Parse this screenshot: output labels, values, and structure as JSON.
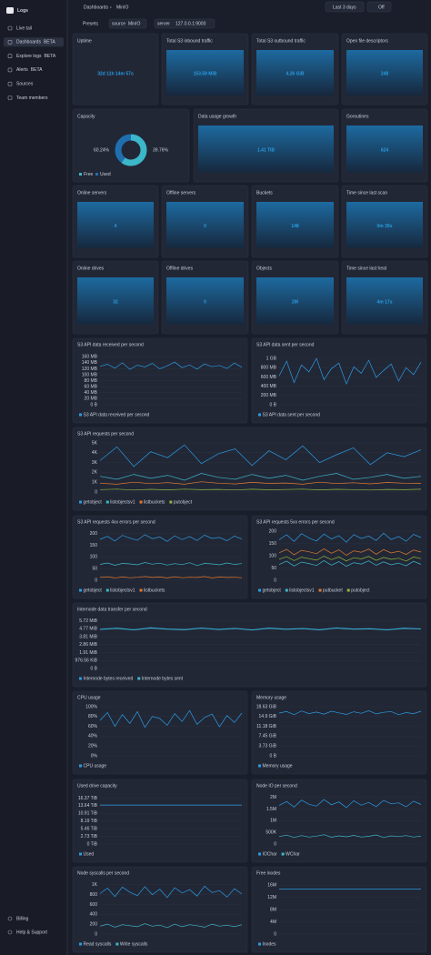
{
  "sidebar": {
    "brand": "Logs",
    "nav": [
      {
        "label": "Live tail"
      },
      {
        "label": "Dashboards",
        "badge": "BETA"
      },
      {
        "label": "Explore logs",
        "badge": "BETA"
      },
      {
        "label": "Alerts",
        "badge": "BETA"
      },
      {
        "label": "Sources"
      },
      {
        "label": "Team members"
      }
    ],
    "footer": [
      "Billing",
      "Help & Support"
    ]
  },
  "topbar": {
    "breadcrumb": [
      "Dashboards",
      "MinIO"
    ],
    "time_range": "Last 3 days",
    "refresh": "Off",
    "presets": "Presets",
    "filters": [
      {
        "key": "source",
        "value": "MinIO"
      },
      {
        "key": "server",
        "value": "127.0.0.1:9000"
      }
    ]
  },
  "stats": [
    {
      "title": "Uptime",
      "value": "32d 11h 14m 57s"
    },
    {
      "title": "Total S3 inbound traffic",
      "value": "153.58 MiB"
    },
    {
      "title": "Total S3 outbound traffic",
      "value": "4.26 GiB"
    },
    {
      "title": "Open file descriptors",
      "value": "248"
    },
    {
      "title": "Data usage growth",
      "value": "1.41 TiB"
    },
    {
      "title": "Goroutines",
      "value": "624"
    },
    {
      "title": "Online servers",
      "value": "4"
    },
    {
      "title": "Offline servers",
      "value": "0"
    },
    {
      "title": "Buckets",
      "value": "148"
    },
    {
      "title": "Time since last scan",
      "value": "0m 39s"
    },
    {
      "title": "Online drives",
      "value": "32"
    },
    {
      "title": "Offline drives",
      "value": "0"
    },
    {
      "title": "Objects",
      "value": "2M"
    },
    {
      "title": "Time since last heal",
      "value": "4m 17s"
    }
  ],
  "capacity": {
    "type": "pie",
    "title": "Capacity",
    "categories": [
      "Free",
      "Used"
    ],
    "values": [
      60.24,
      39.76
    ],
    "value_labels": [
      "60.24%",
      "39.76%"
    ],
    "colors": [
      "#3cb6c9",
      "#1f6fb0"
    ]
  },
  "charts": [
    {
      "type": "line",
      "title": "S3 API data received per second",
      "ylim": [
        0,
        170
      ],
      "yticks": [
        {
          "value": 0,
          "label": "0 B"
        },
        {
          "value": 20,
          "label": "20 MB"
        },
        {
          "value": 40,
          "label": "40 MB"
        },
        {
          "value": 60,
          "label": "60 MB"
        },
        {
          "value": 80,
          "label": "80 MB"
        },
        {
          "value": 100,
          "label": "100 MB"
        },
        {
          "value": 120,
          "label": "120 MB"
        },
        {
          "value": 140,
          "label": "140 MB"
        },
        {
          "value": 160,
          "label": "160 MB"
        }
      ],
      "series": [
        {
          "name": "S3 API data received per second",
          "color": "#2a9be0",
          "values": [
            128,
            135,
            122,
            140,
            118,
            132,
            126,
            138,
            120,
            130,
            142,
            124,
            133,
            119,
            136,
            127,
            131,
            121,
            139,
            125
          ]
        }
      ]
    },
    {
      "type": "line",
      "title": "S3 API data sent per second",
      "ylim": [
        0,
        1100
      ],
      "yticks": [
        {
          "value": 0,
          "label": "0 B"
        },
        {
          "value": 200,
          "label": "200 MB"
        },
        {
          "value": 400,
          "label": "400 MB"
        },
        {
          "value": 600,
          "label": "600 MB"
        },
        {
          "value": 800,
          "label": "800 MB"
        },
        {
          "value": 1000,
          "label": "1 GB"
        }
      ],
      "series": [
        {
          "name": "S3 API data sent per second",
          "color": "#2a9be0",
          "values": [
            620,
            940,
            480,
            860,
            710,
            1000,
            540,
            780,
            900,
            450,
            820,
            680,
            960,
            590,
            740,
            880,
            510,
            800,
            650,
            920
          ]
        }
      ]
    },
    {
      "type": "line",
      "title": "S3 API requests per second",
      "ylim": [
        0,
        5
      ],
      "yticks": [
        0,
        {
          "value": 1,
          "label": "1K"
        },
        {
          "value": 2,
          "label": "2K"
        },
        {
          "value": 3,
          "label": "3K"
        },
        {
          "value": 4,
          "label": "4K"
        },
        {
          "value": 5,
          "label": "5K"
        }
      ],
      "series": [
        {
          "name": "getobject",
          "color": "#2a9be0",
          "values": [
            3.2,
            4.6,
            2.6,
            4.1,
            3.5,
            4.8,
            2.9,
            3.9,
            4.4,
            2.7,
            4.2,
            3.3,
            4.7,
            3.0,
            3.8,
            4.5,
            2.8,
            4.0,
            3.6,
            4.3
          ]
        },
        {
          "name": "listobjectsv1",
          "color": "#3cb6c9",
          "values": [
            1.6,
            1.3,
            1.8,
            1.4,
            1.7,
            1.2,
            1.9,
            1.5,
            1.3,
            1.8,
            1.4,
            1.7,
            1.2,
            1.6,
            1.9,
            1.3,
            1.5,
            1.8,
            1.4,
            1.6
          ]
        },
        {
          "name": "listbuckets",
          "color": "#e07a2e",
          "values": [
            0.9,
            0.8,
            1.0,
            0.85,
            0.95,
            0.8,
            1.05,
            0.9,
            0.82,
            0.98,
            0.88,
            0.92,
            0.8,
            1.0,
            0.86,
            0.94,
            0.83,
            0.97,
            0.9,
            0.87
          ]
        },
        {
          "name": "putobject",
          "color": "#8fb73e",
          "values": [
            0.25,
            0.3,
            0.2,
            0.28,
            0.22,
            0.3,
            0.24,
            0.27,
            0.21,
            0.29,
            0.23,
            0.26,
            0.3,
            0.22,
            0.28,
            0.25,
            0.2,
            0.27,
            0.24,
            0.29
          ]
        }
      ]
    },
    {
      "type": "line",
      "title": "S3 API requests 4xx errors per second",
      "ylim": [
        0,
        210
      ],
      "yticks": [
        0,
        50,
        100,
        150,
        200
      ],
      "series": [
        {
          "name": "getobject",
          "color": "#2a9be0",
          "values": [
            175,
            188,
            168,
            192,
            180,
            171,
            195,
            178,
            185,
            166,
            190,
            174,
            187,
            170,
            193,
            179,
            183,
            169,
            189,
            176
          ]
        },
        {
          "name": "listobjectsv1",
          "color": "#3cb6c9",
          "values": [
            68,
            74,
            64,
            72,
            70,
            66,
            76,
            69,
            73,
            65,
            71,
            67,
            75,
            63,
            72,
            70,
            66,
            74,
            68,
            71
          ]
        },
        {
          "name": "listbuckets",
          "color": "#e07a2e",
          "values": [
            12,
            15,
            10,
            14,
            11,
            13,
            16,
            12,
            14,
            10,
            15,
            11,
            13,
            12,
            16,
            10,
            14,
            12,
            13,
            11
          ]
        }
      ]
    },
    {
      "type": "line",
      "title": "S3 API requests 5xx errors per second",
      "ylim": [
        0,
        200
      ],
      "yticks": [
        0,
        50,
        100,
        150,
        200
      ],
      "series": [
        {
          "name": "getobject",
          "color": "#2a9be0",
          "values": [
            165,
            185,
            158,
            190,
            172,
            160,
            188,
            168,
            182,
            155,
            186,
            170,
            180,
            162,
            192,
            166,
            178,
            159,
            187,
            174
          ]
        },
        {
          "name": "listobjectsv1",
          "color": "#3cb6c9",
          "values": [
            64,
            78,
            58,
            74,
            68,
            60,
            80,
            62,
            76,
            57,
            72,
            66,
            79,
            61,
            75,
            63,
            70,
            59,
            77,
            65
          ]
        },
        {
          "name": "putbucket",
          "color": "#e07a2e",
          "values": [
            112,
            126,
            104,
            122,
            116,
            108,
            128,
            110,
            124,
            102,
            120,
            114,
            127,
            106,
            125,
            111,
            118,
            105,
            123,
            115
          ]
        },
        {
          "name": "putobject",
          "color": "#8fb73e",
          "values": [
            86,
            96,
            80,
            94,
            88,
            82,
            98,
            84,
            95,
            79,
            92,
            87,
            97,
            81,
            93,
            85,
            90,
            78,
            95,
            88
          ]
        }
      ]
    },
    {
      "type": "line",
      "title": "Internode data transfer per second",
      "ylim": [
        0,
        6
      ],
      "yticks": [
        {
          "value": 0,
          "label": "0 B"
        },
        {
          "value": 0.9537,
          "label": "976.56 KiB"
        },
        {
          "value": 1.91,
          "label": "1.91 MiB"
        },
        {
          "value": 2.86,
          "label": "2.86 MiB"
        },
        {
          "value": 3.81,
          "label": "3.81 MiB"
        },
        {
          "value": 4.77,
          "label": "4.77 MiB"
        },
        {
          "value": 5.72,
          "label": "5.72 MiB"
        }
      ],
      "series": [
        {
          "name": "Internode bytes received",
          "color": "#2a9be0",
          "values": [
            4.72,
            4.85,
            4.66,
            4.9,
            4.75,
            4.68,
            4.88,
            4.7,
            4.83,
            4.64,
            4.87,
            4.73,
            4.81,
            4.67,
            4.89,
            4.74,
            4.79,
            4.65,
            4.86,
            4.76
          ]
        },
        {
          "name": "Internode bytes sent",
          "color": "#3cb6c9",
          "values": [
            4.68,
            4.8,
            4.62,
            4.84,
            4.7,
            4.64,
            4.82,
            4.66,
            4.78,
            4.6,
            4.81,
            4.69,
            4.77,
            4.63,
            4.83,
            4.7,
            4.75,
            4.61,
            4.8,
            4.72
          ]
        }
      ]
    },
    {
      "type": "line",
      "title": "CPU usage",
      "ylim": [
        0,
        100
      ],
      "yticks": [
        {
          "value": 0,
          "label": "0%"
        },
        {
          "value": 20,
          "label": "20%"
        },
        {
          "value": 40,
          "label": "40%"
        },
        {
          "value": 60,
          "label": "60%"
        },
        {
          "value": 80,
          "label": "80%"
        },
        {
          "value": 100,
          "label": "100%"
        }
      ],
      "series": [
        {
          "name": "CPU usage",
          "color": "#2a9be0",
          "values": [
            72,
            88,
            60,
            84,
            66,
            90,
            58,
            80,
            76,
            62,
            86,
            70,
            92,
            64,
            78,
            85,
            59,
            82,
            68,
            87
          ]
        }
      ]
    },
    {
      "type": "line",
      "title": "Memory usage",
      "ylim": [
        0,
        18.63
      ],
      "yticks": [
        {
          "value": 0,
          "label": "0 B"
        },
        {
          "value": 3.73,
          "label": "3.73 GiB"
        },
        {
          "value": 7.45,
          "label": "7.45 GiB"
        },
        {
          "value": 11.18,
          "label": "11.18 GiB"
        },
        {
          "value": 14.9,
          "label": "14.9 GiB"
        },
        {
          "value": 18.63,
          "label": "18.63 GiB"
        }
      ],
      "series": [
        {
          "name": "Memory usage",
          "color": "#2a9be0",
          "values": [
            16.2,
            16.8,
            15.6,
            17.0,
            16.0,
            16.6,
            15.8,
            16.9,
            16.3,
            15.7,
            16.7,
            16.1,
            17.1,
            15.9,
            16.5,
            16.8,
            15.6,
            16.4,
            16.0,
            16.9
          ]
        }
      ]
    },
    {
      "type": "line",
      "title": "Used drive capacity",
      "ylim": [
        0,
        17.5
      ],
      "yticks": [
        {
          "value": 0,
          "label": "0 TiB"
        },
        {
          "value": 2.73,
          "label": "2.73 TiB"
        },
        {
          "value": 5.46,
          "label": "5.46 TiB"
        },
        {
          "value": 8.19,
          "label": "8.19 TiB"
        },
        {
          "value": 10.91,
          "label": "10.91 TiB"
        },
        {
          "value": 13.64,
          "label": "13.64 TiB"
        },
        {
          "value": 16.37,
          "label": "16.37 TiB"
        }
      ],
      "series": [
        {
          "name": "Used",
          "color": "#2a9be0",
          "values": [
            13.9,
            13.9,
            13.9,
            13.9,
            13.9,
            13.9,
            13.9,
            13.9,
            13.9,
            13.9,
            13.9,
            13.9,
            13.9,
            13.9,
            13.9,
            13.9,
            13.9,
            13.9,
            13.9,
            13.9
          ]
        }
      ]
    },
    {
      "type": "line",
      "title": "Node IO per second",
      "ylim": [
        0,
        2.1
      ],
      "yticks": [
        0,
        {
          "value": 0.5,
          "label": "500K"
        },
        {
          "value": 1,
          "label": "1M"
        },
        {
          "value": 1.5,
          "label": "1.5M"
        },
        {
          "value": 2,
          "label": "2M"
        }
      ],
      "series": [
        {
          "name": "IOChar",
          "color": "#2a9be0",
          "values": [
            1.65,
            1.82,
            1.58,
            1.88,
            1.7,
            1.62,
            1.9,
            1.68,
            1.8,
            1.56,
            1.85,
            1.66,
            1.78,
            1.6,
            1.87,
            1.72,
            1.76,
            1.59,
            1.83,
            1.69
          ]
        },
        {
          "name": "WChar",
          "color": "#3cb6c9",
          "values": [
            0.32,
            0.38,
            0.28,
            0.36,
            0.3,
            0.34,
            0.4,
            0.29,
            0.35,
            0.31,
            0.37,
            0.3,
            0.33,
            0.39,
            0.28,
            0.35,
            0.32,
            0.36,
            0.3,
            0.34
          ]
        }
      ]
    },
    {
      "type": "line",
      "title": "Node syscalls per second",
      "ylim": [
        0,
        1.05
      ],
      "yticks": [
        0,
        {
          "value": 0.2,
          "label": "200"
        },
        {
          "value": 0.4,
          "label": "400"
        },
        {
          "value": 0.6,
          "label": "600"
        },
        {
          "value": 0.8,
          "label": "800"
        },
        {
          "value": 1,
          "label": "1K"
        }
      ],
      "series": [
        {
          "name": "Read syscalls",
          "color": "#2a9be0",
          "values": [
            0.82,
            0.93,
            0.76,
            0.95,
            0.85,
            0.78,
            0.96,
            0.8,
            0.91,
            0.74,
            0.94,
            0.83,
            0.9,
            0.77,
            0.97,
            0.84,
            0.88,
            0.75,
            0.92,
            0.81
          ]
        },
        {
          "name": "Write syscalls",
          "color": "#3cb6c9",
          "values": [
            0.16,
            0.2,
            0.14,
            0.19,
            0.17,
            0.15,
            0.21,
            0.16,
            0.18,
            0.13,
            0.2,
            0.15,
            0.19,
            0.17,
            0.14,
            0.2,
            0.16,
            0.18,
            0.15,
            0.19
          ]
        }
      ]
    },
    {
      "type": "line",
      "title": "Free inodes",
      "ylim": [
        0,
        17
      ],
      "yticks": [
        0,
        {
          "value": 4,
          "label": "4M"
        },
        {
          "value": 8,
          "label": "8M"
        },
        {
          "value": 12,
          "label": "12M"
        },
        {
          "value": 16,
          "label": "16M"
        }
      ],
      "series": [
        {
          "name": "Inodes",
          "color": "#2a9be0",
          "values": [
            14.8,
            14.8,
            14.8,
            14.8,
            14.8,
            14.8,
            14.8,
            14.8,
            14.8,
            14.8,
            14.8,
            14.8,
            14.8,
            14.8,
            14.8,
            14.8,
            14.8,
            14.8,
            14.8,
            14.8
          ]
        }
      ]
    }
  ]
}
